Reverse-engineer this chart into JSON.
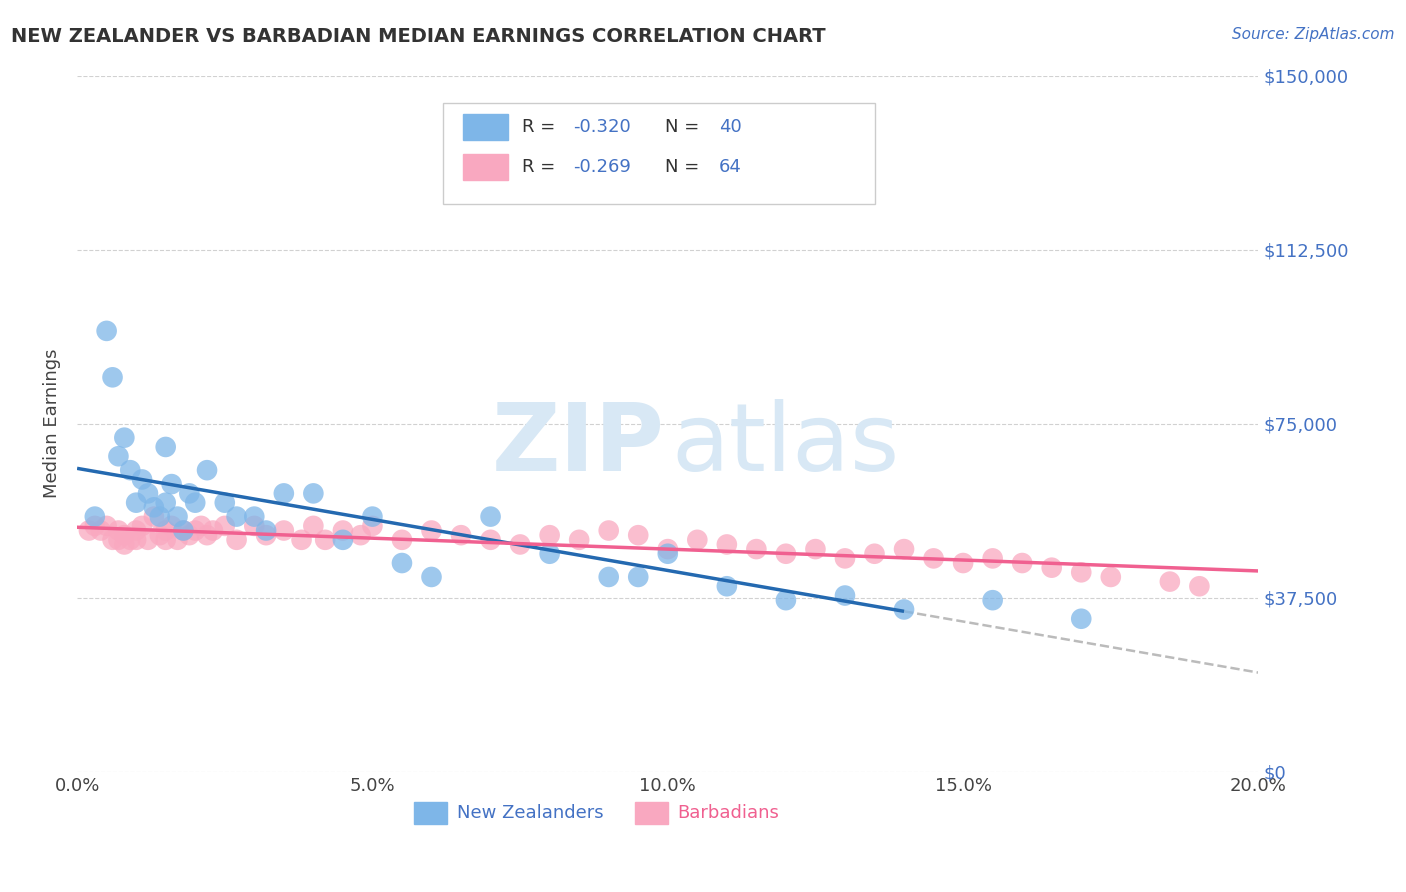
{
  "title": "NEW ZEALANDER VS BARBADIAN MEDIAN EARNINGS CORRELATION CHART",
  "source": "Source: ZipAtlas.com",
  "xlabel_ticks": [
    "0.0%",
    "5.0%",
    "10.0%",
    "15.0%",
    "20.0%"
  ],
  "xlabel_vals": [
    0.0,
    0.05,
    0.1,
    0.15,
    0.2
  ],
  "ylabel": "Median Earnings",
  "ylabel_ticks": [
    0,
    37500,
    75000,
    112500,
    150000
  ],
  "ylabel_labels": [
    "$0",
    "$37,500",
    "$75,000",
    "$112,500",
    "$150,000"
  ],
  "xlim": [
    0.0,
    0.2
  ],
  "ylim": [
    0,
    150000
  ],
  "nz_R": -0.32,
  "nz_N": 40,
  "bb_R": -0.269,
  "bb_N": 64,
  "nz_color": "#7EB6E8",
  "bb_color": "#F9A8C0",
  "nz_line_color": "#2469B0",
  "bb_line_color": "#F06090",
  "dash_line_color": "#BBBBBB",
  "watermark_color": "#D8E8F5",
  "background_color": "#FFFFFF",
  "nz_x": [
    0.003,
    0.005,
    0.006,
    0.007,
    0.008,
    0.009,
    0.01,
    0.011,
    0.012,
    0.013,
    0.014,
    0.015,
    0.016,
    0.017,
    0.018,
    0.019,
    0.02,
    0.022,
    0.025,
    0.027,
    0.03,
    0.032,
    0.035,
    0.04,
    0.045,
    0.05,
    0.055,
    0.06,
    0.07,
    0.08,
    0.09,
    0.095,
    0.1,
    0.11,
    0.12,
    0.13,
    0.14,
    0.155,
    0.17,
    0.015
  ],
  "nz_y": [
    55000,
    95000,
    85000,
    68000,
    72000,
    65000,
    58000,
    63000,
    60000,
    57000,
    55000,
    58000,
    62000,
    55000,
    52000,
    60000,
    58000,
    65000,
    58000,
    55000,
    55000,
    52000,
    60000,
    60000,
    50000,
    55000,
    45000,
    42000,
    55000,
    47000,
    42000,
    42000,
    47000,
    40000,
    37000,
    38000,
    35000,
    37000,
    33000,
    70000
  ],
  "bb_x": [
    0.002,
    0.003,
    0.004,
    0.005,
    0.006,
    0.007,
    0.007,
    0.008,
    0.008,
    0.009,
    0.01,
    0.01,
    0.011,
    0.012,
    0.013,
    0.014,
    0.015,
    0.015,
    0.016,
    0.017,
    0.018,
    0.019,
    0.02,
    0.021,
    0.022,
    0.023,
    0.025,
    0.027,
    0.03,
    0.032,
    0.035,
    0.038,
    0.04,
    0.042,
    0.045,
    0.048,
    0.05,
    0.055,
    0.06,
    0.065,
    0.07,
    0.075,
    0.08,
    0.085,
    0.09,
    0.095,
    0.1,
    0.105,
    0.11,
    0.115,
    0.12,
    0.125,
    0.13,
    0.135,
    0.14,
    0.145,
    0.15,
    0.155,
    0.16,
    0.165,
    0.17,
    0.175,
    0.185,
    0.19
  ],
  "bb_y": [
    52000,
    53000,
    52000,
    53000,
    50000,
    52000,
    50000,
    51000,
    49000,
    50000,
    52000,
    50000,
    53000,
    50000,
    55000,
    51000,
    50000,
    52000,
    53000,
    50000,
    52000,
    51000,
    52000,
    53000,
    51000,
    52000,
    53000,
    50000,
    53000,
    51000,
    52000,
    50000,
    53000,
    50000,
    52000,
    51000,
    53000,
    50000,
    52000,
    51000,
    50000,
    49000,
    51000,
    50000,
    52000,
    51000,
    48000,
    50000,
    49000,
    48000,
    47000,
    48000,
    46000,
    47000,
    48000,
    46000,
    45000,
    46000,
    45000,
    44000,
    43000,
    42000,
    41000,
    40000
  ]
}
